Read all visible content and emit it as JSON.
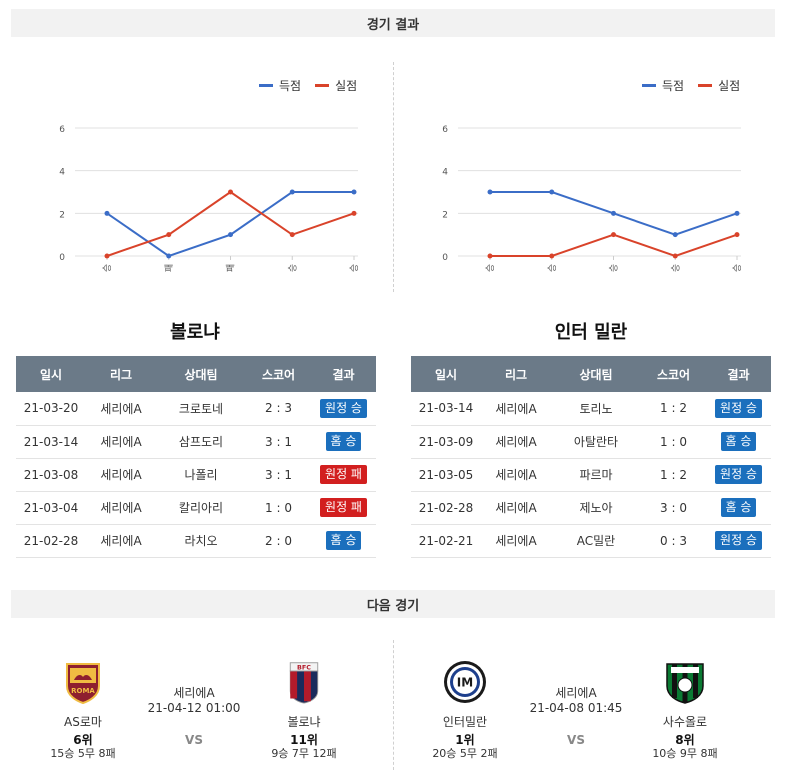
{
  "results_header": "경기 결과",
  "next_header": "다음 경기",
  "legend": {
    "scored": "득점",
    "conceded": "실점"
  },
  "colors": {
    "scored": "#3b6dc7",
    "conceded": "#d9432a",
    "win": "#1b6fbd",
    "lose": "#d21f1f",
    "table_header": "#6b7a88"
  },
  "table_headers": [
    "일시",
    "리그",
    "상대팀",
    "스코어",
    "결과"
  ],
  "teams": [
    {
      "name": "볼로냐",
      "chart_data": {
        "type": "line",
        "categories": [
          "승",
          "패",
          "패",
          "승",
          "승"
        ],
        "series": [
          {
            "name": "득점",
            "values": [
              2,
              0,
              1,
              3,
              3
            ]
          },
          {
            "name": "실점",
            "values": [
              0,
              1,
              3,
              1,
              2
            ]
          }
        ],
        "ylim": [
          0,
          6
        ],
        "yticks": [
          0,
          2,
          4,
          6
        ],
        "grid": true,
        "legend": "top-right"
      },
      "rows": [
        {
          "date": "21-03-20",
          "league": "세리에A",
          "opponent": "크로토네",
          "score": "2 : 3",
          "result": "원정 승",
          "win": true
        },
        {
          "date": "21-03-14",
          "league": "세리에A",
          "opponent": "삼프도리",
          "score": "3 : 1",
          "result": "홈 승",
          "win": true
        },
        {
          "date": "21-03-08",
          "league": "세리에A",
          "opponent": "나폴리",
          "score": "3 : 1",
          "result": "원정 패",
          "win": false
        },
        {
          "date": "21-03-04",
          "league": "세리에A",
          "opponent": "칼리아리",
          "score": "1 : 0",
          "result": "원정 패",
          "win": false
        },
        {
          "date": "21-02-28",
          "league": "세리에A",
          "opponent": "라치오",
          "score": "2 : 0",
          "result": "홈 승",
          "win": true
        }
      ]
    },
    {
      "name": "인터 밀란",
      "chart_data": {
        "type": "line",
        "categories": [
          "승",
          "승",
          "승",
          "승",
          "승"
        ],
        "series": [
          {
            "name": "득점",
            "values": [
              3,
              3,
              2,
              1,
              2
            ]
          },
          {
            "name": "실점",
            "values": [
              0,
              0,
              1,
              0,
              1
            ]
          }
        ],
        "ylim": [
          0,
          6
        ],
        "yticks": [
          0,
          2,
          4,
          6
        ],
        "grid": true,
        "legend": "top-right"
      },
      "rows": [
        {
          "date": "21-03-14",
          "league": "세리에A",
          "opponent": "토리노",
          "score": "1 : 2",
          "result": "원정 승",
          "win": true
        },
        {
          "date": "21-03-09",
          "league": "세리에A",
          "opponent": "아탈란타",
          "score": "1 : 0",
          "result": "홈 승",
          "win": true
        },
        {
          "date": "21-03-05",
          "league": "세리에A",
          "opponent": "파르마",
          "score": "1 : 2",
          "result": "원정 승",
          "win": true
        },
        {
          "date": "21-02-28",
          "league": "세리에A",
          "opponent": "제노아",
          "score": "3 : 0",
          "result": "홈 승",
          "win": true
        },
        {
          "date": "21-02-21",
          "league": "세리에A",
          "opponent": "AC밀란",
          "score": "0 : 3",
          "result": "원정 승",
          "win": true
        }
      ]
    }
  ],
  "next_matches": [
    {
      "league": "세리에A",
      "time": "21-04-12 01:00",
      "vs": "VS",
      "home": {
        "name": "AS로마",
        "rank": "6위",
        "record": "15승 5무 8패",
        "logo": "as-roma-logo"
      },
      "away": {
        "name": "볼로냐",
        "rank": "11위",
        "record": "9승 7무 12패",
        "logo": "bologna-logo"
      }
    },
    {
      "league": "세리에A",
      "time": "21-04-08 01:45",
      "vs": "VS",
      "home": {
        "name": "인터밀란",
        "rank": "1위",
        "record": "20승 5무 2패",
        "logo": "inter-milan-logo"
      },
      "away": {
        "name": "사수올로",
        "rank": "8위",
        "record": "10승 9무 8패",
        "logo": "sassuolo-logo"
      }
    }
  ]
}
